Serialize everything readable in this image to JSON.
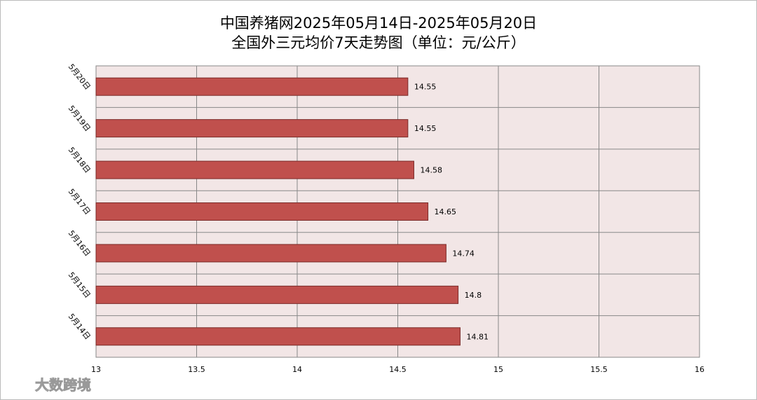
{
  "chart_data": {
    "type": "barh",
    "title": "中国养猪网2025年05月14日-2025年05月20日",
    "subtitle": "全国外三元均价7天走势图（单位：元/公斤）",
    "categories": [
      "5月20日",
      "5月19日",
      "5月18日",
      "5月17日",
      "5月16日",
      "5月15日",
      "5月14日"
    ],
    "values": [
      14.55,
      14.55,
      14.58,
      14.65,
      14.74,
      14.8,
      14.81
    ],
    "color": "#c0504d",
    "xlim": [
      13,
      16
    ],
    "xticks": [
      13,
      13.5,
      14,
      14.5,
      15,
      15.5,
      16
    ],
    "grid": true,
    "watermark": "大数跨境"
  }
}
